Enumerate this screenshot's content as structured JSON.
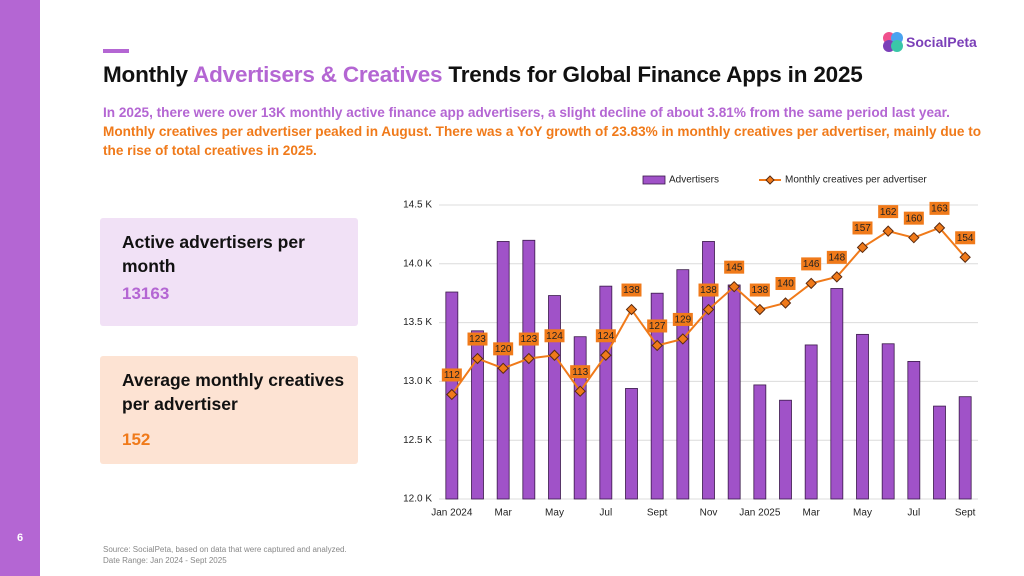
{
  "page_number": "6",
  "title": {
    "before": "Monthly ",
    "highlight": "Advertisers & Creatives",
    "after": " Trends for Global Finance Apps in 2025"
  },
  "summary": {
    "purple": "In 2025, there were over 13K monthly active finance app advertisers, a slight decline of about 3.81% from the same period last year.",
    "orange": " Monthly creatives per advertiser peaked in August. There was a YoY growth of 23.83% in monthly creatives per advertiser, mainly due to the rise of total creatives in 2025."
  },
  "cards": [
    {
      "label": "Active advertisers per month",
      "value": "13163"
    },
    {
      "label": "Average monthly creatives per advertiser",
      "value": "152"
    }
  ],
  "source": [
    "Source: SocialPeta, based on data that were captured and analyzed.",
    "Date Range: Jan 2024 - Sept 2025"
  ],
  "logo": "SocialPeta",
  "chart_data": {
    "type": "combo",
    "categories": [
      "Jan 2024",
      null,
      "Mar",
      null,
      "May",
      null,
      "Jul",
      null,
      "Sept",
      null,
      "Nov",
      null,
      "Jan 2025",
      null,
      "Mar",
      null,
      "May",
      null,
      "Jul",
      null,
      "Sept"
    ],
    "series": [
      {
        "name": "Advertisers",
        "type": "bar",
        "color": "#a052c8",
        "values": [
          13.76,
          13.43,
          14.19,
          14.2,
          13.73,
          13.38,
          13.81,
          12.94,
          13.75,
          13.95,
          14.19,
          13.82,
          12.97,
          12.84,
          13.31,
          13.79,
          13.4,
          13.32,
          13.17,
          12.79,
          12.87
        ]
      },
      {
        "name": "Monthly creatives per advertiser",
        "type": "line",
        "axis": "y2",
        "color": "#f07a1a",
        "values": [
          112,
          123,
          120,
          123,
          124,
          113,
          124,
          138,
          127,
          129,
          138,
          145,
          138,
          140,
          146,
          148,
          157,
          162,
          160,
          163,
          154
        ]
      }
    ],
    "ylim": [
      12.0,
      14.5
    ],
    "yticks": [
      {
        "value": 12.0,
        "label": "12.0 K"
      },
      {
        "value": 12.5,
        "label": "12.5 K"
      },
      {
        "value": 13.0,
        "label": "13.0 K"
      },
      {
        "value": 13.5,
        "label": "13.5 K"
      },
      {
        "value": 14.0,
        "label": "14.0 K"
      },
      {
        "value": 14.5,
        "label": "14.5 K"
      }
    ],
    "y2lim": [
      80,
      170
    ],
    "grid": true,
    "legend": "top"
  }
}
